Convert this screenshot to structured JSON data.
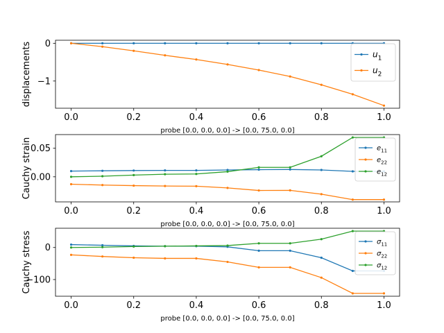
{
  "chart_data": [
    {
      "type": "line",
      "xlabel": "probe [0.0, 0.0, 0.0] -> [0.0, 75.0, 0.0]",
      "ylabel": "displacements",
      "xlim": [
        -0.05,
        1.05
      ],
      "ylim": [
        -1.72,
        0.08
      ],
      "xticks": [
        0.0,
        0.2,
        0.4,
        0.6,
        0.8,
        1.0
      ],
      "xtick_labels": [
        "0.0",
        "0.2",
        "0.4",
        "0.6",
        "0.8",
        "1.0"
      ],
      "yticks": [
        0,
        -1
      ],
      "ytick_labels": [
        "0",
        "−1"
      ],
      "legend_placement": "upper right",
      "x": [
        0.0,
        0.1,
        0.2,
        0.3,
        0.4,
        0.5,
        0.6,
        0.7,
        0.8,
        0.9,
        1.0
      ],
      "series": [
        {
          "name": "u1",
          "name_base": "u",
          "name_sub": "1",
          "color": "#1f77b4",
          "values": [
            0,
            0,
            0,
            0,
            0,
            0,
            0,
            0,
            0,
            0,
            0
          ]
        },
        {
          "name": "u2",
          "name_base": "u",
          "name_sub": "2",
          "color": "#ff7f0e",
          "values": [
            0,
            -0.09,
            -0.2,
            -0.32,
            -0.43,
            -0.56,
            -0.71,
            -0.88,
            -1.1,
            -1.35,
            -1.65
          ]
        }
      ]
    },
    {
      "type": "line",
      "xlabel": "probe [0.0, 0.0, 0.0] -> [0.0, 75.0, 0.0]",
      "ylabel": "Cauchy strain",
      "xlim": [
        -0.05,
        1.05
      ],
      "ylim": [
        -0.044,
        0.074
      ],
      "xticks": [
        0.0,
        0.2,
        0.4,
        0.6,
        0.8,
        1.0
      ],
      "xtick_labels": [
        "0.0",
        "0.2",
        "0.4",
        "0.6",
        "0.8",
        "1.0"
      ],
      "yticks": [
        0.05,
        0.0
      ],
      "ytick_labels": [
        "0.05",
        "0.00"
      ],
      "legend_placement": "upper right",
      "x": [
        0.0,
        0.1,
        0.2,
        0.3,
        0.4,
        0.5,
        0.6,
        0.7,
        0.8,
        0.9,
        1.0
      ],
      "series": [
        {
          "name": "e11",
          "name_base": "e",
          "name_sub": "11",
          "color": "#1f77b4",
          "values": [
            0.01,
            0.0105,
            0.011,
            0.0112,
            0.0112,
            0.012,
            0.0125,
            0.0128,
            0.012,
            0.0095,
            0.0095
          ]
        },
        {
          "name": "e22",
          "name_base": "e",
          "name_sub": "22",
          "color": "#ff7f0e",
          "values": [
            -0.013,
            -0.0145,
            -0.0155,
            -0.0162,
            -0.0165,
            -0.0195,
            -0.024,
            -0.0238,
            -0.0305,
            -0.04,
            -0.04
          ]
        },
        {
          "name": "e12",
          "name_base": "e",
          "name_sub": "12",
          "color": "#2ca02c",
          "values": [
            0,
            0.001,
            0.003,
            0.0045,
            0.005,
            0.009,
            0.0165,
            0.0165,
            0.036,
            0.069,
            0.069
          ]
        }
      ]
    },
    {
      "type": "line",
      "xlabel": "probe [0.0, 0.0, 0.0] -> [0.0, 75.0, 0.0]",
      "ylabel": "Cauchy stress",
      "xlim": [
        -0.05,
        1.05
      ],
      "ylim": [
        -152,
        60
      ],
      "xticks": [
        0.0,
        0.2,
        0.4,
        0.6,
        0.8,
        1.0
      ],
      "xtick_labels": [
        "0.0",
        "0.2",
        "0.4",
        "0.6",
        "0.8",
        "1.0"
      ],
      "yticks": [
        0,
        -100
      ],
      "ytick_labels": [
        "0",
        "−100"
      ],
      "legend_placement": "upper right",
      "x": [
        0.0,
        0.1,
        0.2,
        0.3,
        0.4,
        0.5,
        0.6,
        0.7,
        0.8,
        0.9,
        1.0
      ],
      "series": [
        {
          "name": "σ11",
          "name_base": "σ",
          "name_sub": "11",
          "color": "#1f77b4",
          "values": [
            9,
            7,
            5,
            4,
            4,
            2,
            -10,
            -10,
            -32,
            -73,
            -73
          ]
        },
        {
          "name": "σ22",
          "name_base": "σ",
          "name_sub": "22",
          "color": "#ff7f0e",
          "values": [
            -23,
            -28,
            -32,
            -34,
            -34,
            -45,
            -62,
            -62,
            -94,
            -143,
            -143
          ]
        },
        {
          "name": "σ12",
          "name_base": "σ",
          "name_sub": "12",
          "color": "#2ca02c",
          "values": [
            0,
            1,
            3,
            4,
            5,
            6,
            13,
            13,
            26,
            51,
            51
          ]
        }
      ]
    }
  ]
}
